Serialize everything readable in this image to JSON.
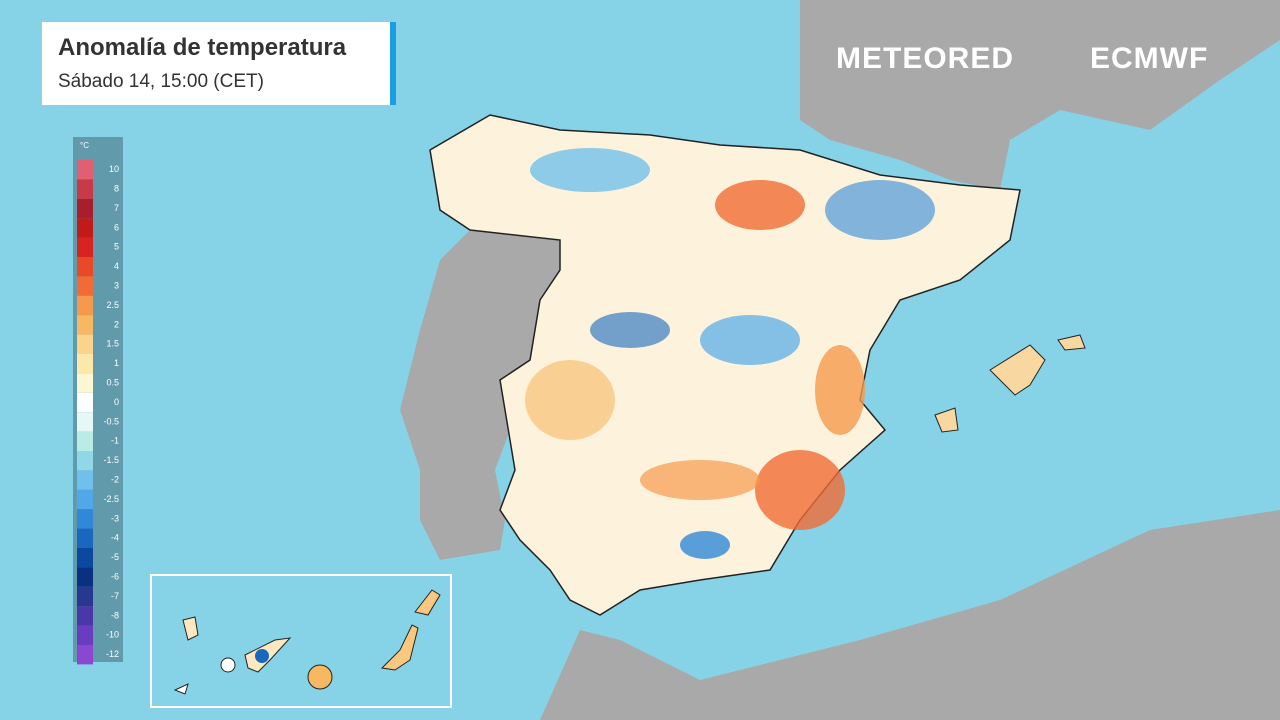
{
  "header": {
    "title": "Anomalía de temperatura",
    "subtitle": "Sábado 14, 15:00 (CET)"
  },
  "logos": {
    "brand": "METEORED",
    "partner": "ECMWF"
  },
  "legend": {
    "unit": "°C",
    "steps": [
      {
        "label": 10,
        "color": "#e06072"
      },
      {
        "label": 8,
        "color": "#c83a4a"
      },
      {
        "label": 7,
        "color": "#a81e2c"
      },
      {
        "label": 6,
        "color": "#c01a1a"
      },
      {
        "label": 5,
        "color": "#d82420"
      },
      {
        "label": 4,
        "color": "#e84a28"
      },
      {
        "label": 3,
        "color": "#f06c34"
      },
      {
        "label": 2.5,
        "color": "#f59a4c"
      },
      {
        "label": 2,
        "color": "#f8b862"
      },
      {
        "label": 1.5,
        "color": "#fad48a"
      },
      {
        "label": 1,
        "color": "#fbe8aa"
      },
      {
        "label": 0.5,
        "color": "#fdf6d2"
      },
      {
        "label": 0,
        "color": "#ffffff"
      },
      {
        "label": -0.5,
        "color": "#e6f8f4"
      },
      {
        "label": -1,
        "color": "#b8ece4"
      },
      {
        "label": -1.5,
        "color": "#90d8e8"
      },
      {
        "label": -2,
        "color": "#70c0ec"
      },
      {
        "label": -2.5,
        "color": "#50a8e8"
      },
      {
        "label": -3,
        "color": "#3088d8"
      },
      {
        "label": -4,
        "color": "#1868c0"
      },
      {
        "label": -5,
        "color": "#0c48a0"
      },
      {
        "label": -6,
        "color": "#0a3080"
      },
      {
        "label": -7,
        "color": "#283890"
      },
      {
        "label": -8,
        "color": "#4a38a8"
      },
      {
        "label": -10,
        "color": "#6a3cc0"
      },
      {
        "label": -12,
        "color": "#8a48d0"
      }
    ]
  }
}
